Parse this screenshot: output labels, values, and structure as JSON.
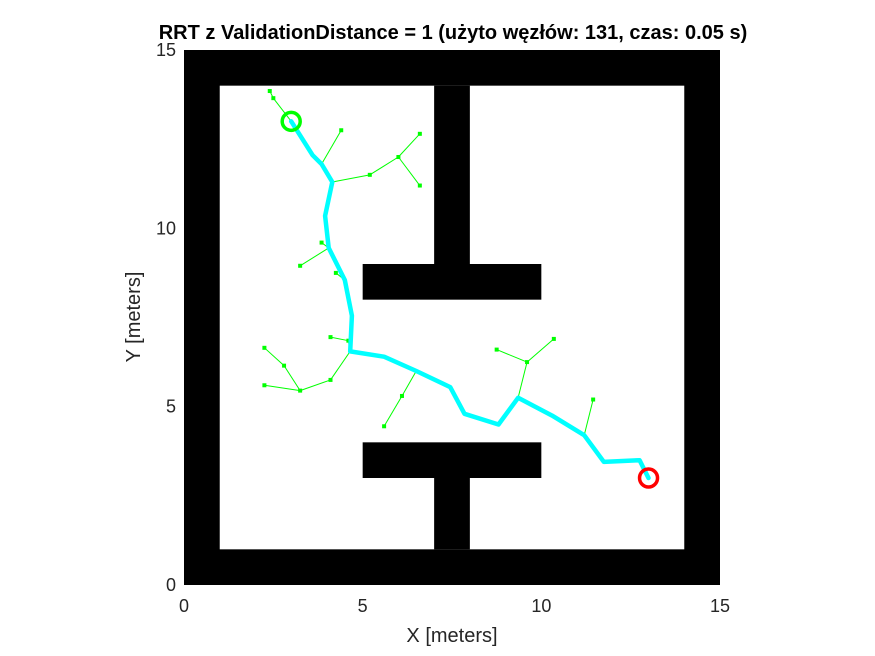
{
  "chart_data": {
    "type": "line",
    "title": "RRT z ValidationDistance = 1 (użyto węzłów: 131, czas: 0.05 s)",
    "xlabel": "X [meters]",
    "ylabel": "Y [meters]",
    "xlim": [
      0,
      15
    ],
    "ylim": [
      0,
      15
    ],
    "xticks": [
      "0",
      "5",
      "10",
      "15"
    ],
    "yticks": [
      "0",
      "5",
      "10",
      "15"
    ],
    "colors": {
      "obstacle": "#000000",
      "free_space": "#ffffff",
      "tree": "#00ff00",
      "path": "#00ffff",
      "start": "#00ff00",
      "goal": "#ff0000"
    },
    "obstacles": [
      {
        "name": "bottom-wall",
        "x0": 0,
        "y0": 0,
        "x1": 15,
        "y1": 1
      },
      {
        "name": "top-wall",
        "x0": 0,
        "y0": 14,
        "x1": 15,
        "y1": 15
      },
      {
        "name": "left-wall",
        "x0": 0,
        "y0": 0,
        "x1": 1,
        "y1": 15
      },
      {
        "name": "right-wall",
        "x0": 14,
        "y0": 0,
        "x1": 15,
        "y1": 15
      },
      {
        "name": "upper-post",
        "x0": 7,
        "y0": 9,
        "x1": 8,
        "y1": 14
      },
      {
        "name": "upper-bar",
        "x0": 5,
        "y0": 8,
        "x1": 10,
        "y1": 9
      },
      {
        "name": "lower-bar",
        "x0": 5,
        "y0": 3,
        "x1": 10,
        "y1": 4
      },
      {
        "name": "lower-post",
        "x0": 7,
        "y0": 1,
        "x1": 8,
        "y1": 3
      }
    ],
    "start": {
      "x": 3,
      "y": 13
    },
    "goal": {
      "x": 13,
      "y": 3
    },
    "path": [
      [
        3.0,
        13.0
      ],
      [
        3.6,
        12.05
      ],
      [
        3.85,
        11.8
      ],
      [
        4.15,
        11.3
      ],
      [
        3.95,
        10.35
      ],
      [
        4.05,
        9.45
      ],
      [
        4.5,
        8.55
      ],
      [
        4.7,
        7.55
      ],
      [
        4.65,
        6.55
      ],
      [
        5.6,
        6.4
      ],
      [
        6.5,
        6.0
      ],
      [
        7.45,
        5.55
      ],
      [
        7.85,
        4.8
      ],
      [
        8.8,
        4.5
      ],
      [
        9.35,
        5.25
      ],
      [
        10.3,
        4.75
      ],
      [
        11.2,
        4.2
      ],
      [
        11.75,
        3.45
      ],
      [
        12.75,
        3.5
      ],
      [
        13.0,
        3.0
      ]
    ],
    "tree_edges": [
      [
        [
          3.0,
          13.0
        ],
        [
          2.5,
          13.65
        ]
      ],
      [
        [
          2.5,
          13.65
        ],
        [
          2.4,
          13.85
        ]
      ],
      [
        [
          3.85,
          11.8
        ],
        [
          4.4,
          12.75
        ]
      ],
      [
        [
          4.15,
          11.3
        ],
        [
          5.2,
          11.5
        ]
      ],
      [
        [
          5.2,
          11.5
        ],
        [
          6.0,
          12.0
        ]
      ],
      [
        [
          6.0,
          12.0
        ],
        [
          6.6,
          12.65
        ]
      ],
      [
        [
          6.0,
          12.0
        ],
        [
          6.6,
          11.2
        ]
      ],
      [
        [
          4.05,
          9.45
        ],
        [
          3.85,
          9.6
        ]
      ],
      [
        [
          4.05,
          9.45
        ],
        [
          3.25,
          8.95
        ]
      ],
      [
        [
          4.5,
          8.55
        ],
        [
          4.25,
          8.75
        ]
      ],
      [
        [
          4.65,
          6.55
        ],
        [
          4.6,
          6.85
        ]
      ],
      [
        [
          4.6,
          6.85
        ],
        [
          4.1,
          6.95
        ]
      ],
      [
        [
          4.65,
          6.55
        ],
        [
          4.1,
          5.75
        ]
      ],
      [
        [
          4.1,
          5.75
        ],
        [
          3.25,
          5.45
        ]
      ],
      [
        [
          3.25,
          5.45
        ],
        [
          2.8,
          6.15
        ]
      ],
      [
        [
          2.8,
          6.15
        ],
        [
          2.25,
          6.65
        ]
      ],
      [
        [
          3.25,
          5.45
        ],
        [
          2.25,
          5.6
        ]
      ],
      [
        [
          6.5,
          6.0
        ],
        [
          6.1,
          5.3
        ]
      ],
      [
        [
          6.1,
          5.3
        ],
        [
          5.6,
          4.45
        ]
      ],
      [
        [
          9.35,
          5.25
        ],
        [
          9.6,
          6.25
        ]
      ],
      [
        [
          9.6,
          6.25
        ],
        [
          8.75,
          6.6
        ]
      ],
      [
        [
          9.6,
          6.25
        ],
        [
          10.35,
          6.9
        ]
      ],
      [
        [
          11.2,
          4.2
        ],
        [
          11.45,
          5.2
        ]
      ]
    ]
  }
}
